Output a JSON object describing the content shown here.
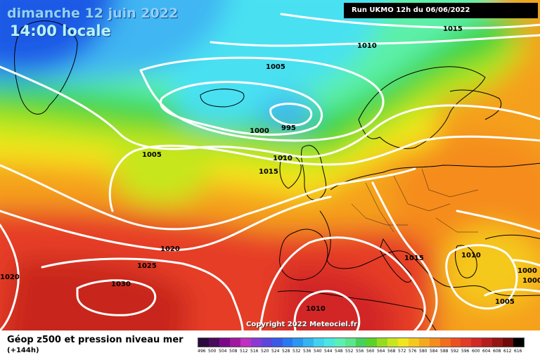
{
  "header": {
    "date": "dimanche 12 juin 2022",
    "local_time": "14:00 locale",
    "run": "Run UKMO 12h du 06/06/2022"
  },
  "footer": {
    "product": "Géop z500 et pression niveau mer",
    "lead": "(+144h)",
    "copyright": "Copyright 2022 Meteociel.fr"
  },
  "colors": {
    "deep_blue": "#1f5ae6",
    "sky_blue": "#3fb6f2",
    "cyan": "#48e1f2",
    "aqua_green": "#5cf0a8",
    "green": "#3ad23a",
    "yellow_green": "#b4e61e",
    "yellow": "#f5e61e",
    "orange": "#f5a01e",
    "red": "#e63c28",
    "dark_red": "#c8281e",
    "isobar": "#ffffff",
    "coastline": "#000000"
  },
  "isobars": [
    {
      "label": "1015"
    },
    {
      "label": "1010"
    },
    {
      "label": "1005"
    },
    {
      "label": "1000"
    },
    {
      "label": "995"
    },
    {
      "label": "1005"
    },
    {
      "label": "1010"
    },
    {
      "label": "1015"
    },
    {
      "label": "1020"
    },
    {
      "label": "1025"
    },
    {
      "label": "1030"
    },
    {
      "label": "1020"
    },
    {
      "label": "1010"
    },
    {
      "label": "1015"
    },
    {
      "label": "1010"
    },
    {
      "label": "1000"
    },
    {
      "label": "1000"
    },
    {
      "label": "1005"
    }
  ],
  "legend_scale": [
    {
      "label": "496",
      "color": "#2a0a3a"
    },
    {
      "label": "500",
      "color": "#4a0a5a"
    },
    {
      "label": "504",
      "color": "#7a0a8a"
    },
    {
      "label": "508",
      "color": "#a01aa0"
    },
    {
      "label": "512",
      "color": "#c030c0"
    },
    {
      "label": "516",
      "color": "#8a3ad2"
    },
    {
      "label": "520",
      "color": "#5a46dc"
    },
    {
      "label": "524",
      "color": "#3a5ae6"
    },
    {
      "label": "528",
      "color": "#2a78f0"
    },
    {
      "label": "532",
      "color": "#2a96f0"
    },
    {
      "label": "536",
      "color": "#34b4f0"
    },
    {
      "label": "540",
      "color": "#42d2f0"
    },
    {
      "label": "544",
      "color": "#4ae6e0"
    },
    {
      "label": "548",
      "color": "#5af0b4"
    },
    {
      "label": "552",
      "color": "#5ae68a"
    },
    {
      "label": "556",
      "color": "#46d25a"
    },
    {
      "label": "560",
      "color": "#5ad228"
    },
    {
      "label": "564",
      "color": "#96dc1e"
    },
    {
      "label": "568",
      "color": "#c8e61e"
    },
    {
      "label": "572",
      "color": "#f0e61e"
    },
    {
      "label": "576",
      "color": "#f5c81e"
    },
    {
      "label": "580",
      "color": "#f5aa1e"
    },
    {
      "label": "584",
      "color": "#f58c1e"
    },
    {
      "label": "588",
      "color": "#f06e1e"
    },
    {
      "label": "592",
      "color": "#eb501e"
    },
    {
      "label": "596",
      "color": "#e13c28"
    },
    {
      "label": "600",
      "color": "#d22828"
    },
    {
      "label": "604",
      "color": "#b41e1e"
    },
    {
      "label": "608",
      "color": "#961414"
    },
    {
      "label": "612",
      "color": "#6e0a0a"
    },
    {
      "label": "616",
      "color": "#000000"
    }
  ]
}
